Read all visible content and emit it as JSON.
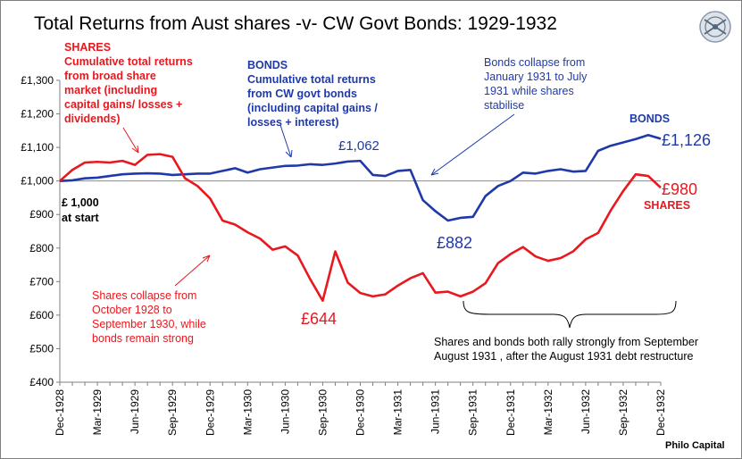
{
  "chart_data": {
    "type": "line",
    "title": "Total Returns from Aust shares -v-  CW Govt Bonds: 1929-1932",
    "ylim": [
      400,
      1300
    ],
    "yticks": [
      "£400",
      "£500",
      "£600",
      "£700",
      "£800",
      "£900",
      "£1,000",
      "£1,100",
      "£1,200",
      "£1,300"
    ],
    "ytick_values": [
      400,
      500,
      600,
      700,
      800,
      900,
      1000,
      1100,
      1200,
      1300
    ],
    "xtick_labels": [
      "Dec-1928",
      "Mar-1929",
      "Jun-1929",
      "Sep-1929",
      "Dec-1929",
      "Mar-1930",
      "Jun-1930",
      "Sep-1930",
      "Dec-1930",
      "Mar-1931",
      "Jun-1931",
      "Sep-1931",
      "Dec-1931",
      "Mar-1932",
      "Jun-1932",
      "Sep-1932",
      "Dec-1932"
    ],
    "grid": false,
    "series": [
      {
        "name": "SHARES",
        "color": "#e8181e",
        "values": [
          1000,
          1033,
          1055,
          1057,
          1055,
          1060,
          1048,
          1078,
          1080,
          1072,
          1008,
          985,
          948,
          882,
          870,
          847,
          828,
          795,
          805,
          778,
          707,
          643,
          790,
          697,
          666,
          656,
          662,
          688,
          710,
          725,
          667,
          670,
          656,
          670,
          695,
          755,
          782,
          803,
          775,
          762,
          770,
          790,
          826,
          845,
          912,
          970,
          1020,
          1015,
          980
        ]
      },
      {
        "name": "BONDS",
        "color": "#1f3aa8",
        "values": [
          1000,
          1002,
          1008,
          1010,
          1015,
          1020,
          1022,
          1023,
          1022,
          1018,
          1020,
          1022,
          1022,
          1030,
          1038,
          1025,
          1035,
          1040,
          1045,
          1046,
          1050,
          1048,
          1052,
          1058,
          1060,
          1018,
          1015,
          1030,
          1033,
          943,
          910,
          882,
          890,
          893,
          955,
          985,
          1000,
          1025,
          1022,
          1030,
          1035,
          1028,
          1030,
          1090,
          1105,
          1115,
          1125,
          1137,
          1126
        ]
      }
    ],
    "baseline": 1000,
    "data_labels": [
      {
        "text": "£1,062",
        "series": "BONDS",
        "x_index": 23,
        "value": 1062
      },
      {
        "text": "£882",
        "series": "BONDS",
        "x_index": 31,
        "value": 882
      },
      {
        "text": "£1,126",
        "series": "BONDS",
        "x_index": 48,
        "value": 1126
      },
      {
        "text": "£644",
        "series": "SHARES",
        "x_index": 21,
        "value": 644
      },
      {
        "text": "£980",
        "series": "SHARES",
        "x_index": 48,
        "value": 980
      }
    ]
  },
  "annotations": {
    "shares_title": "SHARES",
    "shares_desc": [
      "Cumulative total returns",
      "from broad share",
      "market (including",
      "capital gains/  losses +",
      "dividends)"
    ],
    "bonds_title": "BONDS",
    "bonds_desc": [
      "Cumulative total returns",
      "from CW govt bonds",
      "(including capital gains /",
      "losses  + interest)"
    ],
    "bonds_collapse": [
      "Bonds collapse from",
      "January 1931 to July",
      "1931 while shares",
      "stabilise"
    ],
    "shares_collapse": [
      "Shares collapse from",
      "October 1928 to",
      "September 1930, while",
      "bonds remain strong"
    ],
    "start_label": [
      "£ 1,000",
      "at start"
    ],
    "bonds_legend": "BONDS",
    "shares_legend": "SHARES",
    "rally_note": [
      "Shares and bonds both rally strongly from September",
      "August 1931 , after the August 1931 debt restructure"
    ],
    "source": "Philo Capital"
  },
  "colors": {
    "shares": "#e8181e",
    "bonds": "#1f3aa8",
    "axis": "#7f7f7f",
    "baseline": "#8c8c8c"
  }
}
